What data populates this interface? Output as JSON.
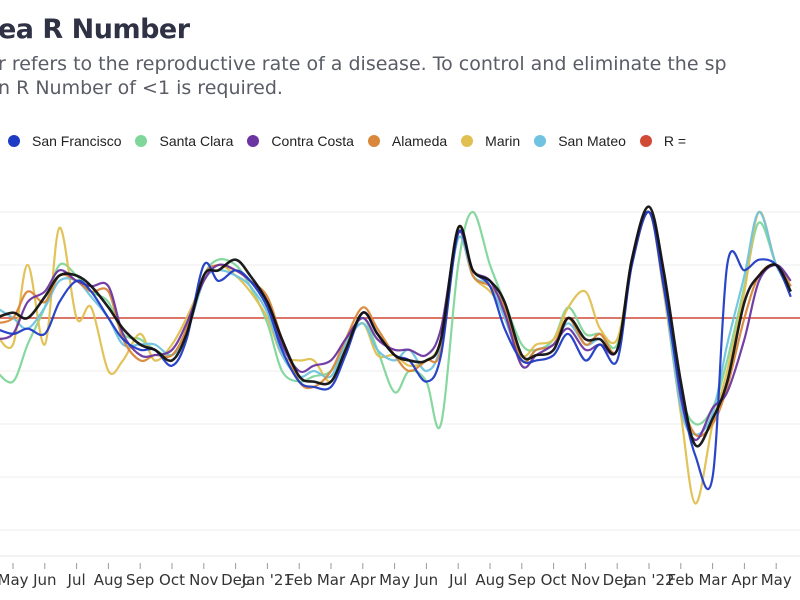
{
  "title": "ea R Number",
  "subtitle_lines": [
    "r refers to the reproductive rate of a disease. To control and eliminate the sp",
    "n R Number of <1 is required."
  ],
  "chart_data": {
    "type": "line",
    "title": "ea R Number",
    "xlabel": "",
    "ylabel": "",
    "ylim": [
      0.56,
      1.25
    ],
    "grid": true,
    "legend_placement": "top",
    "x_tick_labels": [
      "May",
      "Jun",
      "Jul",
      "Aug",
      "Sep",
      "Oct",
      "Nov",
      "Dec",
      "Jan '21",
      "Feb",
      "Mar",
      "Apr",
      "May",
      "Jun",
      "Jul",
      "Aug",
      "Sep",
      "Oct",
      "Nov",
      "Dec",
      "Jan '22",
      "Feb",
      "Mar",
      "Apr",
      "May"
    ],
    "x_tick_dates": [
      "2020-05-01",
      "2020-06-01",
      "2020-07-01",
      "2020-08-01",
      "2020-09-01",
      "2020-10-01",
      "2020-11-01",
      "2020-12-01",
      "2021-01-01",
      "2021-02-01",
      "2021-03-01",
      "2021-04-01",
      "2021-05-01",
      "2021-06-01",
      "2021-07-01",
      "2021-08-01",
      "2021-09-01",
      "2021-10-01",
      "2021-11-01",
      "2021-12-01",
      "2022-01-01",
      "2022-02-01",
      "2022-03-01",
      "2022-04-01",
      "2022-05-01"
    ],
    "x": [
      "2020-04-15",
      "2020-05-01",
      "2020-05-15",
      "2020-06-01",
      "2020-06-15",
      "2020-07-01",
      "2020-07-15",
      "2020-08-01",
      "2020-08-15",
      "2020-09-01",
      "2020-09-15",
      "2020-10-01",
      "2020-10-15",
      "2020-11-01",
      "2020-11-15",
      "2020-12-01",
      "2020-12-15",
      "2021-01-01",
      "2021-01-15",
      "2021-02-01",
      "2021-02-15",
      "2021-03-01",
      "2021-03-15",
      "2021-04-01",
      "2021-04-15",
      "2021-05-01",
      "2021-05-15",
      "2021-06-01",
      "2021-06-15",
      "2021-07-01",
      "2021-07-15",
      "2021-08-01",
      "2021-08-15",
      "2021-09-01",
      "2021-09-15",
      "2021-10-01",
      "2021-10-15",
      "2021-11-01",
      "2021-11-15",
      "2021-12-01",
      "2021-12-15",
      "2022-01-01",
      "2022-01-15",
      "2022-02-01",
      "2022-02-15",
      "2022-03-01",
      "2022-03-15",
      "2022-04-01",
      "2022-04-15",
      "2022-05-01",
      "2022-05-15"
    ],
    "reference_line": {
      "name": "R = ",
      "value": 1,
      "color": "#d04a35"
    },
    "series": [
      {
        "name": "Santa Clara",
        "color": "#7fd69a",
        "values": [
          0.9,
          0.88,
          0.95,
          1.02,
          1.1,
          1.08,
          1.05,
          1.03,
          0.97,
          0.96,
          0.94,
          0.93,
          0.98,
          1.08,
          1.11,
          1.1,
          1.06,
          0.99,
          0.9,
          0.88,
          0.89,
          0.9,
          0.95,
          1.0,
          0.94,
          0.86,
          0.9,
          0.88,
          0.8,
          1.1,
          1.2,
          1.1,
          1.03,
          0.95,
          0.94,
          0.96,
          1.02,
          0.97,
          0.97,
          0.95,
          1.1,
          1.2,
          1.06,
          0.86,
          0.8,
          0.83,
          0.92,
          1.06,
          1.18,
          1.1,
          1.05
        ]
      },
      {
        "name": "Marin",
        "color": "#e0c050",
        "values": [
          0.97,
          0.95,
          1.1,
          0.95,
          1.17,
          1.0,
          1.02,
          0.9,
          0.92,
          0.97,
          0.92,
          0.95,
          1.0,
          1.07,
          1.1,
          1.08,
          1.05,
          1.0,
          0.93,
          0.92,
          0.92,
          0.88,
          0.95,
          0.99,
          0.93,
          0.93,
          0.91,
          0.92,
          0.96,
          1.15,
          1.08,
          1.05,
          1.01,
          0.93,
          0.95,
          0.96,
          1.02,
          1.05,
          0.98,
          0.96,
          1.1,
          1.2,
          1.05,
          0.82,
          0.65,
          0.8,
          0.9,
          1.05,
          1.2,
          1.1,
          1.06
        ]
      },
      {
        "name": "San Mateo",
        "color": "#6fc3e0",
        "values": [
          1.02,
          1.0,
          0.98,
          1.02,
          1.07,
          1.07,
          1.04,
          1.0,
          0.95,
          0.95,
          0.95,
          0.93,
          0.97,
          1.07,
          1.09,
          1.08,
          1.06,
          1.01,
          0.93,
          0.89,
          0.9,
          0.89,
          0.95,
          0.99,
          0.94,
          0.92,
          0.94,
          0.9,
          0.95,
          1.15,
          1.08,
          1.06,
          1.0,
          0.92,
          0.94,
          0.95,
          0.99,
          0.95,
          0.96,
          0.94,
          1.1,
          1.2,
          1.06,
          0.83,
          0.78,
          0.82,
          0.95,
          1.08,
          1.2,
          1.1,
          1.06
        ]
      },
      {
        "name": "Alameda",
        "color": "#d9873a",
        "values": [
          0.99,
          1.0,
          1.05,
          1.03,
          1.08,
          1.07,
          1.05,
          1.05,
          0.96,
          0.92,
          0.93,
          0.93,
          0.98,
          1.08,
          1.1,
          1.09,
          1.07,
          1.04,
          0.96,
          0.88,
          0.87,
          0.9,
          0.96,
          1.02,
          0.98,
          0.93,
          0.9,
          0.92,
          0.94,
          1.17,
          1.08,
          1.06,
          1.02,
          0.92,
          0.94,
          0.95,
          1.0,
          0.95,
          0.97,
          0.94,
          1.11,
          1.2,
          1.07,
          0.86,
          0.78,
          0.8,
          0.87,
          1.0,
          1.08,
          1.1,
          1.06
        ]
      },
      {
        "name": "Contra Costa",
        "color": "#6a35a0",
        "values": [
          0.96,
          0.97,
          1.03,
          1.05,
          1.09,
          1.07,
          1.06,
          1.06,
          0.97,
          0.93,
          0.93,
          0.94,
          0.99,
          1.07,
          1.1,
          1.09,
          1.07,
          1.03,
          0.95,
          0.9,
          0.91,
          0.92,
          0.96,
          1.0,
          0.96,
          0.94,
          0.94,
          0.93,
          0.98,
          1.16,
          1.09,
          1.07,
          1.01,
          0.91,
          0.93,
          0.95,
          0.98,
          0.94,
          0.95,
          0.94,
          1.1,
          1.2,
          1.08,
          0.85,
          0.77,
          0.83,
          0.86,
          0.96,
          1.07,
          1.1,
          1.07
        ]
      },
      {
        "name": "San Francisco",
        "color": "#1f3bc4",
        "values": [
          0.98,
          0.97,
          0.98,
          0.97,
          1.03,
          1.07,
          1.05,
          1.0,
          0.96,
          0.94,
          0.94,
          0.91,
          0.96,
          1.1,
          1.07,
          1.09,
          1.07,
          1.02,
          0.94,
          0.88,
          0.87,
          0.87,
          0.93,
          1.01,
          0.97,
          0.93,
          0.92,
          0.88,
          0.93,
          1.16,
          1.09,
          1.06,
          0.98,
          0.92,
          0.92,
          0.93,
          0.97,
          0.92,
          0.95,
          0.92,
          1.1,
          1.2,
          1.06,
          0.86,
          0.74,
          0.7,
          1.1,
          1.09,
          1.11,
          1.1,
          1.04
        ]
      },
      {
        "color": "#111111",
        "values": [
          1.0,
          1.01,
          1.0,
          1.04,
          1.08,
          1.08,
          1.06,
          1.02,
          0.98,
          0.95,
          0.94,
          0.92,
          0.97,
          1.08,
          1.09,
          1.11,
          1.08,
          1.03,
          0.96,
          0.89,
          0.88,
          0.88,
          0.94,
          1.01,
          0.97,
          0.93,
          0.92,
          0.92,
          0.96,
          1.17,
          1.09,
          1.07,
          1.03,
          0.93,
          0.93,
          0.94,
          1.0,
          0.96,
          0.96,
          0.94,
          1.11,
          1.21,
          1.09,
          0.88,
          0.76,
          0.81,
          0.88,
          1.03,
          1.08,
          1.1,
          1.05
        ]
      }
    ],
    "legend": [
      {
        "name": "San Francisco",
        "color": "#1f3bc4"
      },
      {
        "name": "Santa Clara",
        "color": "#7fd69a"
      },
      {
        "name": "Contra Costa",
        "color": "#6a35a0"
      },
      {
        "name": "Alameda",
        "color": "#d9873a"
      },
      {
        "name": "Marin",
        "color": "#e0c050"
      },
      {
        "name": "San Mateo",
        "color": "#6fc3e0"
      },
      {
        "name": "R = ",
        "color": "#d04a35"
      }
    ]
  }
}
